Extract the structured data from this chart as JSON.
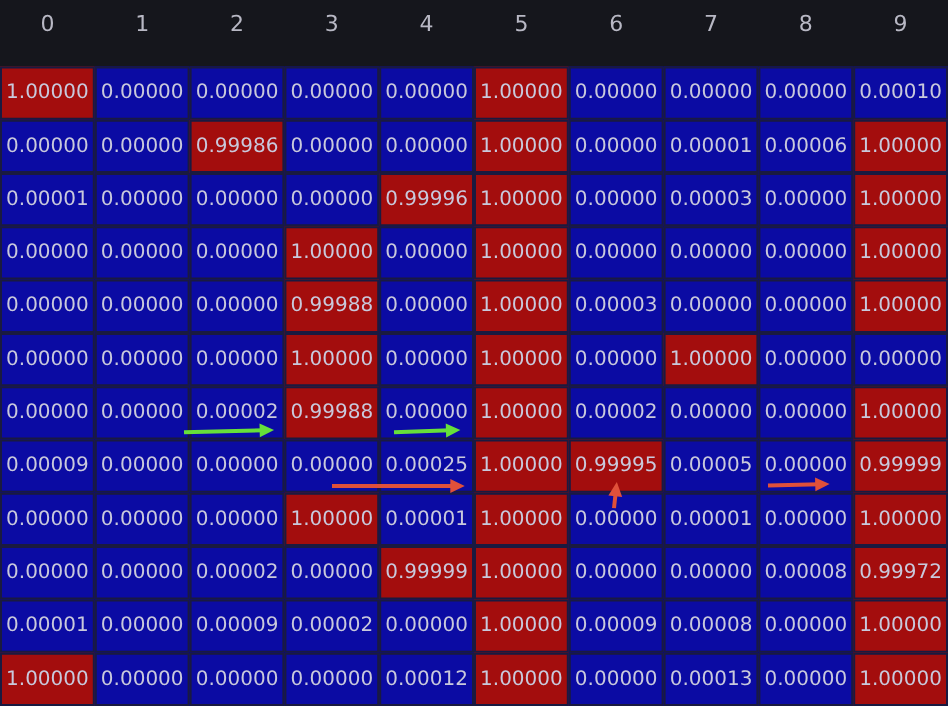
{
  "chart_data": {
    "type": "heatmap",
    "categories": [
      "0",
      "1",
      "2",
      "3",
      "4",
      "5",
      "6",
      "7",
      "8",
      "9"
    ],
    "y_categories": [
      null,
      null,
      null,
      null,
      null,
      null,
      null,
      null,
      null,
      null,
      null,
      null
    ],
    "tick_labels": "x",
    "colors": [
      "#0b0ba3",
      "#a30d0d"
    ],
    "cells": [
      [
        1.0,
        0.0,
        0.0,
        0.0,
        0.0,
        1.0,
        0.0,
        0.0,
        0.0,
        0.0001
      ],
      [
        0.0,
        0.0,
        0.99986,
        0.0,
        0.0,
        1.0,
        0.0,
        1e-05,
        6e-05,
        1.0
      ],
      [
        1e-05,
        0.0,
        0.0,
        0.0,
        0.99996,
        1.0,
        0.0,
        3e-05,
        0.0,
        1.0
      ],
      [
        0.0,
        0.0,
        0.0,
        1.0,
        0.0,
        1.0,
        0.0,
        0.0,
        0.0,
        1.0
      ],
      [
        0.0,
        0.0,
        0.0,
        0.99988,
        0.0,
        1.0,
        3e-05,
        0.0,
        0.0,
        1.0
      ],
      [
        0.0,
        0.0,
        0.0,
        1.0,
        0.0,
        1.0,
        0.0,
        1.0,
        0.0,
        0.0
      ],
      [
        0.0,
        0.0,
        2e-05,
        0.99988,
        0.0,
        1.0,
        2e-05,
        0.0,
        0.0,
        1.0
      ],
      [
        9e-05,
        0.0,
        0.0,
        0.0,
        0.00025,
        1.0,
        0.99995,
        5e-05,
        0.0,
        0.99999
      ],
      [
        0.0,
        0.0,
        0.0,
        1.0,
        1e-05,
        1.0,
        0.0,
        1e-05,
        0.0,
        1.0
      ],
      [
        0.0,
        0.0,
        2e-05,
        0.0,
        0.99999,
        1.0,
        0.0,
        0.0,
        8e-05,
        0.99972
      ],
      [
        1e-05,
        0.0,
        9e-05,
        2e-05,
        0.0,
        1.0,
        9e-05,
        8e-05,
        0.0,
        1.0
      ],
      [
        1.0,
        0.0,
        0.0,
        0.0,
        0.00012,
        1.0,
        0.0,
        0.00013,
        0.0,
        1.0
      ]
    ],
    "cell_labels": [
      [
        "1.00000",
        "0.00000",
        "0.00000",
        "0.00000",
        "0.00000",
        "1.00000",
        "0.00000",
        "0.00000",
        "0.00000",
        "0.00010"
      ],
      [
        "0.00000",
        "0.00000",
        "0.99986",
        "0.00000",
        "0.00000",
        "1.00000",
        "0.00000",
        "0.00001",
        "0.00006",
        "1.00000"
      ],
      [
        "0.00001",
        "0.00000",
        "0.00000",
        "0.00000",
        "0.99996",
        "1.00000",
        "0.00000",
        "0.00003",
        "0.00000",
        "1.00000"
      ],
      [
        "0.00000",
        "0.00000",
        "0.00000",
        "1.00000",
        "0.00000",
        "1.00000",
        "0.00000",
        "0.00000",
        "0.00000",
        "1.00000"
      ],
      [
        "0.00000",
        "0.00000",
        "0.00000",
        "0.99988",
        "0.00000",
        "1.00000",
        "0.00003",
        "0.00000",
        "0.00000",
        "1.00000"
      ],
      [
        "0.00000",
        "0.00000",
        "0.00000",
        "1.00000",
        "0.00000",
        "1.00000",
        "0.00000",
        "1.00000",
        "0.00000",
        "0.00000"
      ],
      [
        "0.00000",
        "0.00000",
        "0.00002",
        "0.99988",
        "0.00000",
        "1.00000",
        "0.00002",
        "0.00000",
        "0.00000",
        "1.00000"
      ],
      [
        "0.00009",
        "0.00000",
        "0.00000",
        "0.00000",
        "0.00025",
        "1.00000",
        "0.99995",
        "0.00005",
        "0.00000",
        "0.99999"
      ],
      [
        "0.00000",
        "0.00000",
        "0.00000",
        "1.00000",
        "0.00001",
        "1.00000",
        "0.00000",
        "0.00001",
        "0.00000",
        "1.00000"
      ],
      [
        "0.00000",
        "0.00000",
        "0.00002",
        "0.00000",
        "0.99999",
        "1.00000",
        "0.00000",
        "0.00000",
        "0.00008",
        "0.99972"
      ],
      [
        "0.00001",
        "0.00000",
        "0.00009",
        "0.00002",
        "0.00000",
        "1.00000",
        "0.00009",
        "0.00008",
        "0.00000",
        "1.00000"
      ],
      [
        "1.00000",
        "0.00000",
        "0.00000",
        "0.00000",
        "0.00012",
        "1.00000",
        "0.00000",
        "0.00013",
        "0.00000",
        "1.00000"
      ]
    ],
    "data_labels": true
  }
}
